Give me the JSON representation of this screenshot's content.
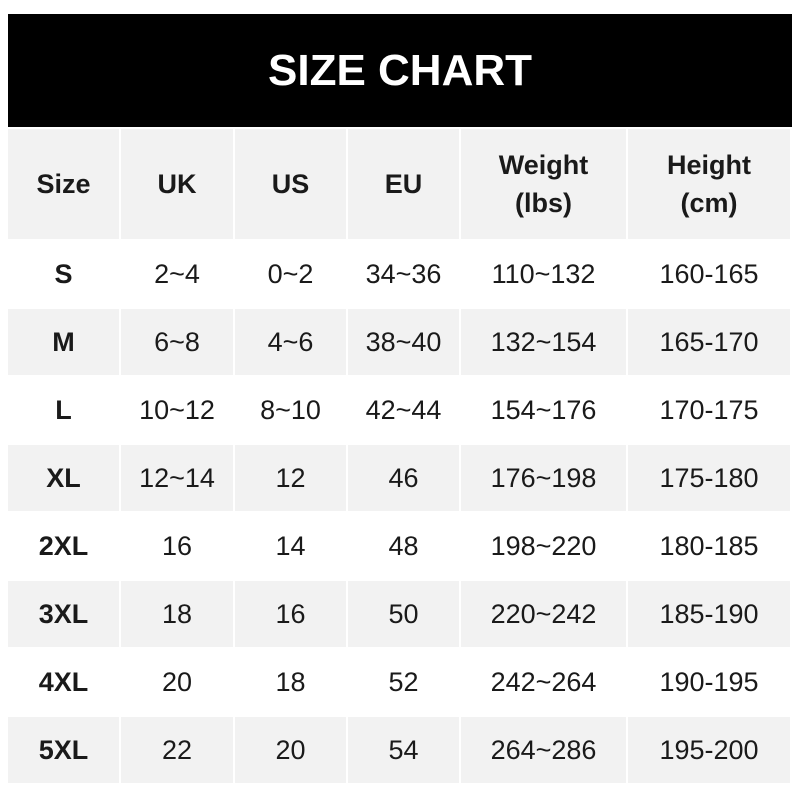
{
  "title": "SIZE CHART",
  "headers": [
    "Size",
    "UK",
    "US",
    "EU",
    "Weight\n(lbs)",
    "Height\n(cm)"
  ],
  "rows": [
    [
      "S",
      "2~4",
      "0~2",
      "34~36",
      "110~132",
      "160-165"
    ],
    [
      "M",
      "6~8",
      "4~6",
      "38~40",
      "132~154",
      "165-170"
    ],
    [
      "L",
      "10~12",
      "8~10",
      "42~44",
      "154~176",
      "170-175"
    ],
    [
      "XL",
      "12~14",
      "12",
      "46",
      "176~198",
      "175-180"
    ],
    [
      "2XL",
      "16",
      "14",
      "48",
      "198~220",
      "180-185"
    ],
    [
      "3XL",
      "18",
      "16",
      "50",
      "220~242",
      "185-190"
    ],
    [
      "4XL",
      "20",
      "18",
      "52",
      "242~264",
      "190-195"
    ],
    [
      "5XL",
      "22",
      "20",
      "54",
      "264~286",
      "195-200"
    ]
  ],
  "colors": {
    "title_bg": "#000000",
    "header_bg": "#f2f2f2",
    "stripe_bg": "#f2f2f2",
    "row_bg": "#ffffff"
  }
}
